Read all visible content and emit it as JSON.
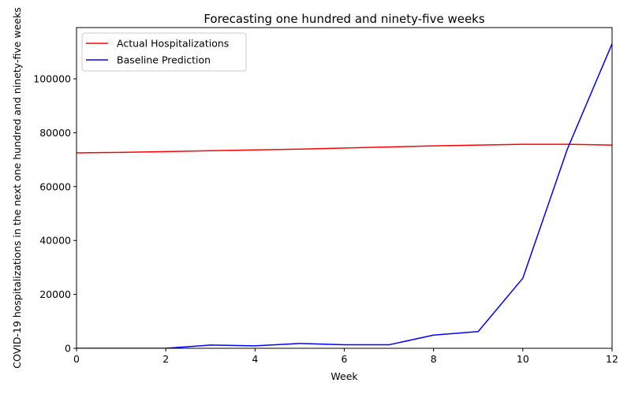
{
  "chart_data": {
    "type": "line",
    "title": "Forecasting one hundred and ninety-five weeks",
    "xlabel": "Week",
    "ylabel": "COVID-19 hospitalizations in the next one hundred and ninety-five weeks",
    "xlim": [
      0,
      12
    ],
    "ylim": [
      0,
      119000
    ],
    "x_ticks": [
      0,
      2,
      4,
      6,
      8,
      10,
      12
    ],
    "x_tick_labels": [
      "0",
      "2",
      "4",
      "6",
      "8",
      "10",
      "12"
    ],
    "y_ticks": [
      0,
      20000,
      40000,
      60000,
      80000,
      100000
    ],
    "y_tick_labels": [
      "0",
      "20000",
      "40000",
      "60000",
      "80000",
      "100000"
    ],
    "grid": false,
    "legend_position": "upper-left",
    "x": [
      0,
      1,
      2,
      3,
      4,
      5,
      6,
      7,
      8,
      9,
      10,
      11,
      12
    ],
    "series": [
      {
        "name": "Actual Hospitalizations",
        "color": "#ff0000",
        "values": [
          72500,
          72700,
          73000,
          73300,
          73600,
          73900,
          74300,
          74700,
          75100,
          75400,
          75700,
          75700,
          75400
        ]
      },
      {
        "name": "Baseline Prediction",
        "color": "#0000ff",
        "values": [
          0,
          0,
          0,
          1200,
          900,
          1800,
          1300,
          1300,
          4900,
          6200,
          26000,
          74000,
          113000
        ]
      }
    ]
  }
}
